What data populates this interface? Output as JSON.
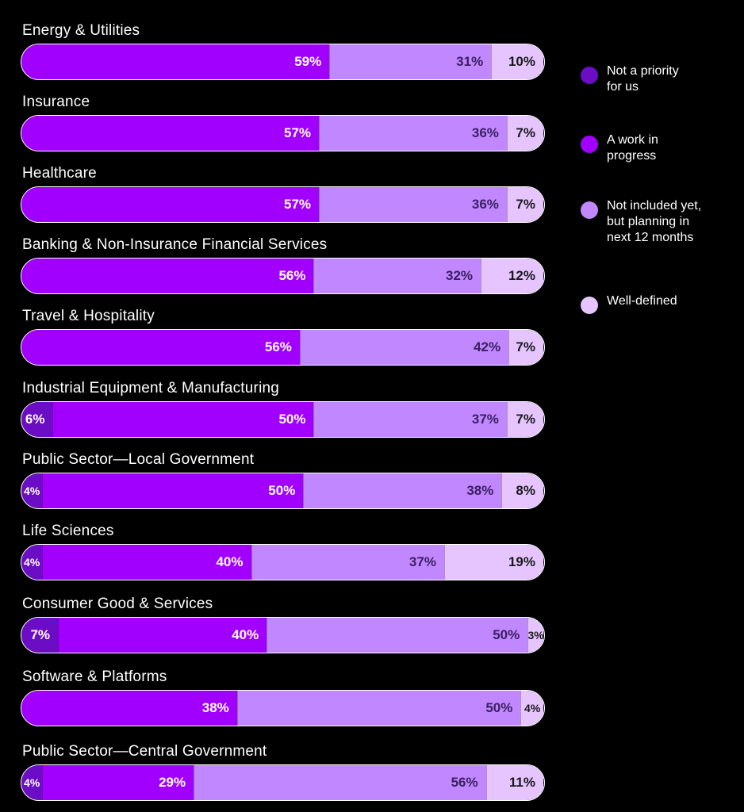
{
  "chart_data": {
    "type": "bar",
    "orientation": "horizontal",
    "stacked": true,
    "unit": "%",
    "legend_position": "right",
    "series": [
      {
        "name": "Not a priority for us",
        "color": "#6a0dc4"
      },
      {
        "name": "A work in progress",
        "color": "#a100ff"
      },
      {
        "name": "Not included yet, but planning in next 12 months",
        "color": "#c087ff"
      },
      {
        "name": "Well-defined",
        "color": "#e6c5ff"
      }
    ],
    "categories": [
      {
        "name": "Energy & Utilities",
        "values": [
          null,
          59,
          31,
          10
        ]
      },
      {
        "name": "Insurance",
        "values": [
          null,
          57,
          36,
          7
        ]
      },
      {
        "name": "Healthcare",
        "values": [
          null,
          57,
          36,
          7
        ]
      },
      {
        "name": "Banking & Non-Insurance Financial Services",
        "values": [
          null,
          56,
          32,
          12
        ]
      },
      {
        "name": "Travel & Hospitality",
        "values": [
          null,
          56,
          42,
          7
        ]
      },
      {
        "name": "Industrial Equipment & Manufacturing",
        "values": [
          6,
          50,
          37,
          7
        ]
      },
      {
        "name": "Public Sector—Local Government",
        "values": [
          4,
          50,
          38,
          8
        ]
      },
      {
        "name": "Life Sciences",
        "values": [
          4,
          40,
          37,
          19
        ]
      },
      {
        "name": "Consumer Good & Services",
        "values": [
          7,
          40,
          50,
          3
        ]
      },
      {
        "name": "Software & Platforms",
        "values": [
          null,
          38,
          50,
          4
        ]
      },
      {
        "name": "Public Sector—Central Government",
        "values": [
          4,
          29,
          56,
          11
        ]
      }
    ]
  },
  "legend": {
    "items": [
      {
        "lines": [
          "Not a priority",
          "for us"
        ],
        "color": "#6a0dc4"
      },
      {
        "lines": [
          "A work in",
          "progress"
        ],
        "color": "#a100ff"
      },
      {
        "lines": [
          "Not included yet,",
          "but planning in",
          "next 12 months"
        ],
        "color": "#c087ff"
      },
      {
        "lines": [
          "Well-defined"
        ],
        "color": "#e6c5ff"
      }
    ]
  }
}
